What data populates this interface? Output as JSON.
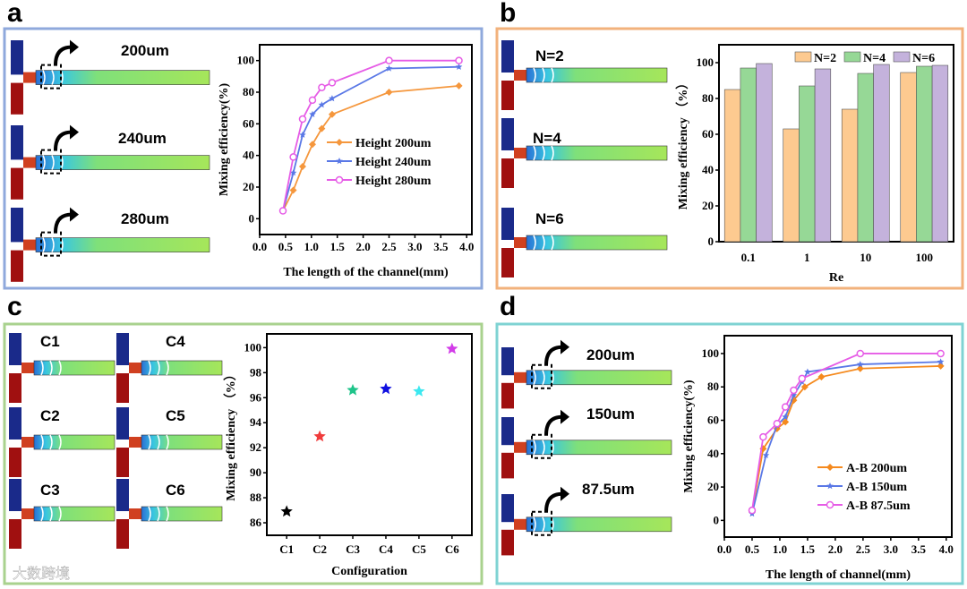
{
  "panels": [
    {
      "id": "a",
      "label": "a",
      "border": "#8fa9dc",
      "sim_labels": [
        "200um",
        "240um",
        "280um"
      ]
    },
    {
      "id": "b",
      "label": "b",
      "border": "#f2b27c",
      "sim_labels": [
        "N=2",
        "N=4",
        "N=6"
      ]
    },
    {
      "id": "c",
      "label": "c",
      "border": "#a9d28e",
      "sim_labels": [
        "C1",
        "C4",
        "C2",
        "C5",
        "C3",
        "C6"
      ]
    },
    {
      "id": "d",
      "label": "d",
      "border": "#7fd3d3",
      "sim_labels": [
        "200um",
        "150um",
        "87.5um"
      ]
    }
  ],
  "watermark": "大数跨境",
  "chart_data": [
    {
      "panel": "a",
      "type": "line",
      "title": "",
      "xlabel": "The length of the channel(mm)",
      "ylabel": "Mixing efficiency(%)",
      "xlim": [
        0,
        4.1
      ],
      "ylim": [
        -10,
        110
      ],
      "xticks": [
        "0.0",
        "0.5",
        "1.0",
        "1.5",
        "2.0",
        "2.5",
        "3.0",
        "3.5",
        "4.0"
      ],
      "yticks": [
        "0",
        "20",
        "40",
        "60",
        "80",
        "100"
      ],
      "legend": "center-right",
      "series": [
        {
          "name": "Height 200um",
          "color": "#f5973d",
          "marker": "diamond",
          "x": [
            0.45,
            0.65,
            0.83,
            1.02,
            1.2,
            1.4,
            2.5,
            3.85
          ],
          "y": [
            5,
            18,
            33,
            47,
            57,
            66,
            80,
            84
          ]
        },
        {
          "name": "Height 240um",
          "color": "#5a78e6",
          "marker": "star",
          "x": [
            0.45,
            0.65,
            0.83,
            1.02,
            1.2,
            1.4,
            2.5,
            3.85
          ],
          "y": [
            5,
            29,
            53,
            66,
            72,
            76,
            95,
            96
          ]
        },
        {
          "name": "Height 280um",
          "color": "#e65ce6",
          "marker": "circle",
          "x": [
            0.45,
            0.65,
            0.83,
            1.02,
            1.2,
            1.4,
            2.5,
            3.85
          ],
          "y": [
            5,
            39,
            63,
            75,
            83,
            86,
            100,
            100
          ]
        }
      ]
    },
    {
      "panel": "b",
      "type": "bar",
      "title": "",
      "xlabel": "Re",
      "ylabel": "Mixing efficiency （%）",
      "categories": [
        "0.1",
        "1",
        "10",
        "100"
      ],
      "ylim": [
        0,
        110
      ],
      "yticks": [
        "0",
        "20",
        "40",
        "60",
        "80",
        "100"
      ],
      "legend": "top",
      "series": [
        {
          "name": "N=2",
          "color": "#fdca90",
          "values": [
            85,
            63,
            74,
            94.5
          ]
        },
        {
          "name": "N=4",
          "color": "#96d896",
          "values": [
            97,
            87,
            94,
            98
          ]
        },
        {
          "name": "N=6",
          "color": "#c4b2dc",
          "values": [
            99.5,
            96.5,
            99,
            98.5
          ]
        }
      ]
    },
    {
      "panel": "c",
      "type": "scatter",
      "title": "",
      "xlabel": "Configuration",
      "ylabel": "Mixing efficiency （%）",
      "categories": [
        "C1",
        "C2",
        "C3",
        "C4",
        "C5",
        "C6"
      ],
      "ylim": [
        85,
        101.1
      ],
      "yticks": [
        "86",
        "88",
        "90",
        "92",
        "94",
        "96",
        "98",
        "100"
      ],
      "values": [
        86.9,
        92.9,
        96.6,
        96.7,
        96.5,
        99.9
      ],
      "colors": [
        "#000000",
        "#f03c3c",
        "#1fc48a",
        "#1010e0",
        "#3ce8f0",
        "#d23ce8"
      ]
    },
    {
      "panel": "d",
      "type": "line",
      "title": "",
      "xlabel": "The length of channel(mm)",
      "ylabel": "Mixing efficiency(%)",
      "xlim": [
        0,
        4.1
      ],
      "ylim": [
        -10,
        110.7
      ],
      "xticks": [
        "0.0",
        "0.5",
        "1.0",
        "1.5",
        "2.0",
        "2.5",
        "3.0",
        "3.5",
        "4.0"
      ],
      "yticks": [
        "0",
        "20",
        "40",
        "60",
        "80",
        "100"
      ],
      "legend": "bottom-right",
      "series": [
        {
          "name": "A-B 200um",
          "color": "#f58a1e",
          "marker": "diamond",
          "x": [
            0.5,
            0.7,
            0.95,
            1.1,
            1.25,
            1.45,
            1.75,
            2.45,
            3.9
          ],
          "y": [
            5,
            43,
            55,
            59,
            72,
            80,
            86,
            91,
            92.5
          ]
        },
        {
          "name": "A-B 150um",
          "color": "#5a78e6",
          "marker": "star",
          "x": [
            0.5,
            0.75,
            0.95,
            1.1,
            1.25,
            1.4,
            1.5,
            2.45,
            3.9
          ],
          "y": [
            4,
            39,
            57,
            62,
            75,
            83,
            89,
            93.5,
            95
          ]
        },
        {
          "name": "A-B 87.5um",
          "color": "#e65ce6",
          "marker": "circle",
          "x": [
            0.5,
            0.7,
            0.95,
            1.1,
            1.25,
            1.4,
            2.45,
            3.9
          ],
          "y": [
            6,
            50,
            58,
            68,
            78,
            85,
            100,
            100
          ]
        }
      ]
    }
  ]
}
